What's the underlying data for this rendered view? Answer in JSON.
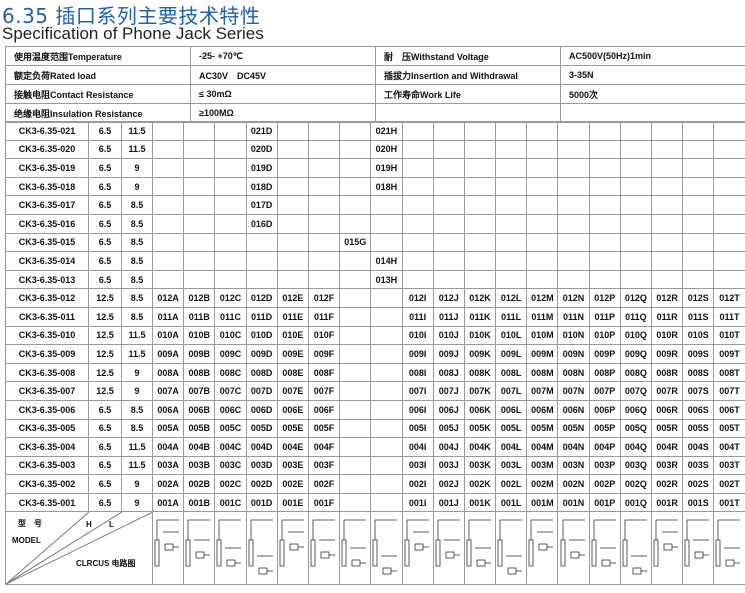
{
  "title_cn": "6.35 插口系列主要技术特性",
  "title_en": "Specification of Phone Jack Series",
  "specs": [
    [
      "使用温度范围Temperature",
      "-25- +70℃",
      "耐　压Withstand Voltage",
      "AC500V(50Hz)1min"
    ],
    [
      "额定负荷Rated load",
      "AC30V　DC45V",
      "插拔力Insertion and Withdrawal",
      "3-35N"
    ],
    [
      "接触电阻Contact Resistance",
      "≤ 30mΩ",
      "工作寿命Work Life",
      "5000次"
    ],
    [
      "绝缘电阻Insulation Resistance",
      "≥100MΩ",
      "",
      ""
    ]
  ],
  "rows": [
    {
      "model": "CK3-6.35-021",
      "h": "6.5",
      "l": "11.5",
      "cells": [
        "",
        "",
        "",
        "021D",
        "",
        "",
        "",
        "021H",
        "",
        "",
        "",
        "",
        "",
        "",
        "",
        "",
        "",
        "",
        ""
      ]
    },
    {
      "model": "CK3-6.35-020",
      "h": "6.5",
      "l": "11.5",
      "cells": [
        "",
        "",
        "",
        "020D",
        "",
        "",
        "",
        "020H",
        "",
        "",
        "",
        "",
        "",
        "",
        "",
        "",
        "",
        "",
        ""
      ]
    },
    {
      "model": "CK3-6.35-019",
      "h": "6.5",
      "l": "9",
      "cells": [
        "",
        "",
        "",
        "019D",
        "",
        "",
        "",
        "019H",
        "",
        "",
        "",
        "",
        "",
        "",
        "",
        "",
        "",
        "",
        ""
      ]
    },
    {
      "model": "CK3-6.35-018",
      "h": "6.5",
      "l": "9",
      "cells": [
        "",
        "",
        "",
        "018D",
        "",
        "",
        "",
        "018H",
        "",
        "",
        "",
        "",
        "",
        "",
        "",
        "",
        "",
        "",
        ""
      ]
    },
    {
      "model": "CK3-6.35-017",
      "h": "6.5",
      "l": "8.5",
      "cells": [
        "",
        "",
        "",
        "017D",
        "",
        "",
        "",
        "",
        "",
        "",
        "",
        "",
        "",
        "",
        "",
        "",
        "",
        "",
        ""
      ]
    },
    {
      "model": "CK3-6.35-016",
      "h": "6.5",
      "l": "8.5",
      "cells": [
        "",
        "",
        "",
        "016D",
        "",
        "",
        "",
        "",
        "",
        "",
        "",
        "",
        "",
        "",
        "",
        "",
        "",
        "",
        ""
      ]
    },
    {
      "model": "CK3-6.35-015",
      "h": "6.5",
      "l": "8.5",
      "cells": [
        "",
        "",
        "",
        "",
        "",
        "",
        "015G",
        "",
        "",
        "",
        "",
        "",
        "",
        "",
        "",
        "",
        "",
        "",
        ""
      ]
    },
    {
      "model": "CK3-6.35-014",
      "h": "6.5",
      "l": "8.5",
      "cells": [
        "",
        "",
        "",
        "",
        "",
        "",
        "",
        "014H",
        "",
        "",
        "",
        "",
        "",
        "",
        "",
        "",
        "",
        "",
        ""
      ]
    },
    {
      "model": "CK3-6.35-013",
      "h": "6.5",
      "l": "8.5",
      "cells": [
        "",
        "",
        "",
        "",
        "",
        "",
        "",
        "013H",
        "",
        "",
        "",
        "",
        "",
        "",
        "",
        "",
        "",
        "",
        ""
      ]
    },
    {
      "model": "CK3-6.35-012",
      "h": "12.5",
      "l": "8.5",
      "cells": [
        "012A",
        "012B",
        "012C",
        "012D",
        "012E",
        "012F",
        "",
        "",
        "012I",
        "012J",
        "012K",
        "012L",
        "012M",
        "012N",
        "012P",
        "012Q",
        "012R",
        "012S",
        "012T"
      ]
    },
    {
      "model": "CK3-6.35-011",
      "h": "12.5",
      "l": "8.5",
      "cells": [
        "011A",
        "011B",
        "011C",
        "011D",
        "011E",
        "011F",
        "",
        "",
        "011I",
        "011J",
        "011K",
        "011L",
        "011M",
        "011N",
        "011P",
        "011Q",
        "011R",
        "011S",
        "011T"
      ]
    },
    {
      "model": "CK3-6.35-010",
      "h": "12.5",
      "l": "11.5",
      "cells": [
        "010A",
        "010B",
        "010C",
        "010D",
        "010E",
        "010F",
        "",
        "",
        "010I",
        "010J",
        "010K",
        "010L",
        "010M",
        "010N",
        "010P",
        "010Q",
        "010R",
        "010S",
        "010T"
      ]
    },
    {
      "model": "CK3-6.35-009",
      "h": "12.5",
      "l": "11.5",
      "cells": [
        "009A",
        "009B",
        "009C",
        "009D",
        "009E",
        "009F",
        "",
        "",
        "009I",
        "009J",
        "009K",
        "009L",
        "009M",
        "009N",
        "009P",
        "009Q",
        "009R",
        "009S",
        "009T"
      ]
    },
    {
      "model": "CK3-6.35-008",
      "h": "12.5",
      "l": "9",
      "cells": [
        "008A",
        "008B",
        "008C",
        "008D",
        "008E",
        "008F",
        "",
        "",
        "008I",
        "008J",
        "008K",
        "008L",
        "008M",
        "008N",
        "008P",
        "008Q",
        "008R",
        "008S",
        "008T"
      ]
    },
    {
      "model": "CK3-6.35-007",
      "h": "12.5",
      "l": "9",
      "cells": [
        "007A",
        "007B",
        "007C",
        "007D",
        "007E",
        "007F",
        "",
        "",
        "007I",
        "007J",
        "007K",
        "007L",
        "007M",
        "007N",
        "007P",
        "007Q",
        "007R",
        "007S",
        "007T"
      ]
    },
    {
      "model": "CK3-6.35-006",
      "h": "6.5",
      "l": "8.5",
      "cells": [
        "006A",
        "006B",
        "006C",
        "006D",
        "006E",
        "006F",
        "",
        "",
        "006I",
        "006J",
        "006K",
        "006L",
        "006M",
        "006N",
        "006P",
        "006Q",
        "006R",
        "006S",
        "006T"
      ]
    },
    {
      "model": "CK3-6.35-005",
      "h": "6.5",
      "l": "8.5",
      "cells": [
        "005A",
        "005B",
        "005C",
        "005D",
        "005E",
        "005F",
        "",
        "",
        "005I",
        "005J",
        "005K",
        "005L",
        "005M",
        "005N",
        "005P",
        "005Q",
        "005R",
        "005S",
        "005T"
      ]
    },
    {
      "model": "CK3-6.35-004",
      "h": "6.5",
      "l": "11.5",
      "cells": [
        "004A",
        "004B",
        "004C",
        "004D",
        "004E",
        "004F",
        "",
        "",
        "004I",
        "004J",
        "004K",
        "004L",
        "004M",
        "004N",
        "004P",
        "004Q",
        "004R",
        "004S",
        "004T"
      ]
    },
    {
      "model": "CK3-6.35-003",
      "h": "6.5",
      "l": "11.5",
      "cells": [
        "003A",
        "003B",
        "003C",
        "003D",
        "003E",
        "003F",
        "",
        "",
        "003I",
        "003J",
        "003K",
        "003L",
        "003M",
        "003N",
        "003P",
        "003Q",
        "003R",
        "003S",
        "003T"
      ]
    },
    {
      "model": "CK3-6.35-002",
      "h": "6.5",
      "l": "9",
      "cells": [
        "002A",
        "002B",
        "002C",
        "002D",
        "002E",
        "002F",
        "",
        "",
        "002I",
        "002J",
        "002K",
        "002L",
        "002M",
        "002N",
        "002P",
        "002Q",
        "002R",
        "002S",
        "002T"
      ]
    },
    {
      "model": "CK3-6.35-001",
      "h": "6.5",
      "l": "9",
      "cells": [
        "001A",
        "001B",
        "001C",
        "001D",
        "001E",
        "001F",
        "",
        "",
        "001I",
        "001J",
        "001K",
        "001L",
        "001M",
        "001N",
        "001P",
        "001Q",
        "001R",
        "001S",
        "001T"
      ]
    }
  ],
  "footer": {
    "model_cn": "型　号",
    "h": "H",
    "l": "L",
    "model_en": "MODEL",
    "circuit": "CLRCUS 电路图"
  },
  "icons": {
    "circuit": "circuit-diagram-icon"
  },
  "colors": {
    "title": "#1f5fae",
    "border": "#999999"
  }
}
